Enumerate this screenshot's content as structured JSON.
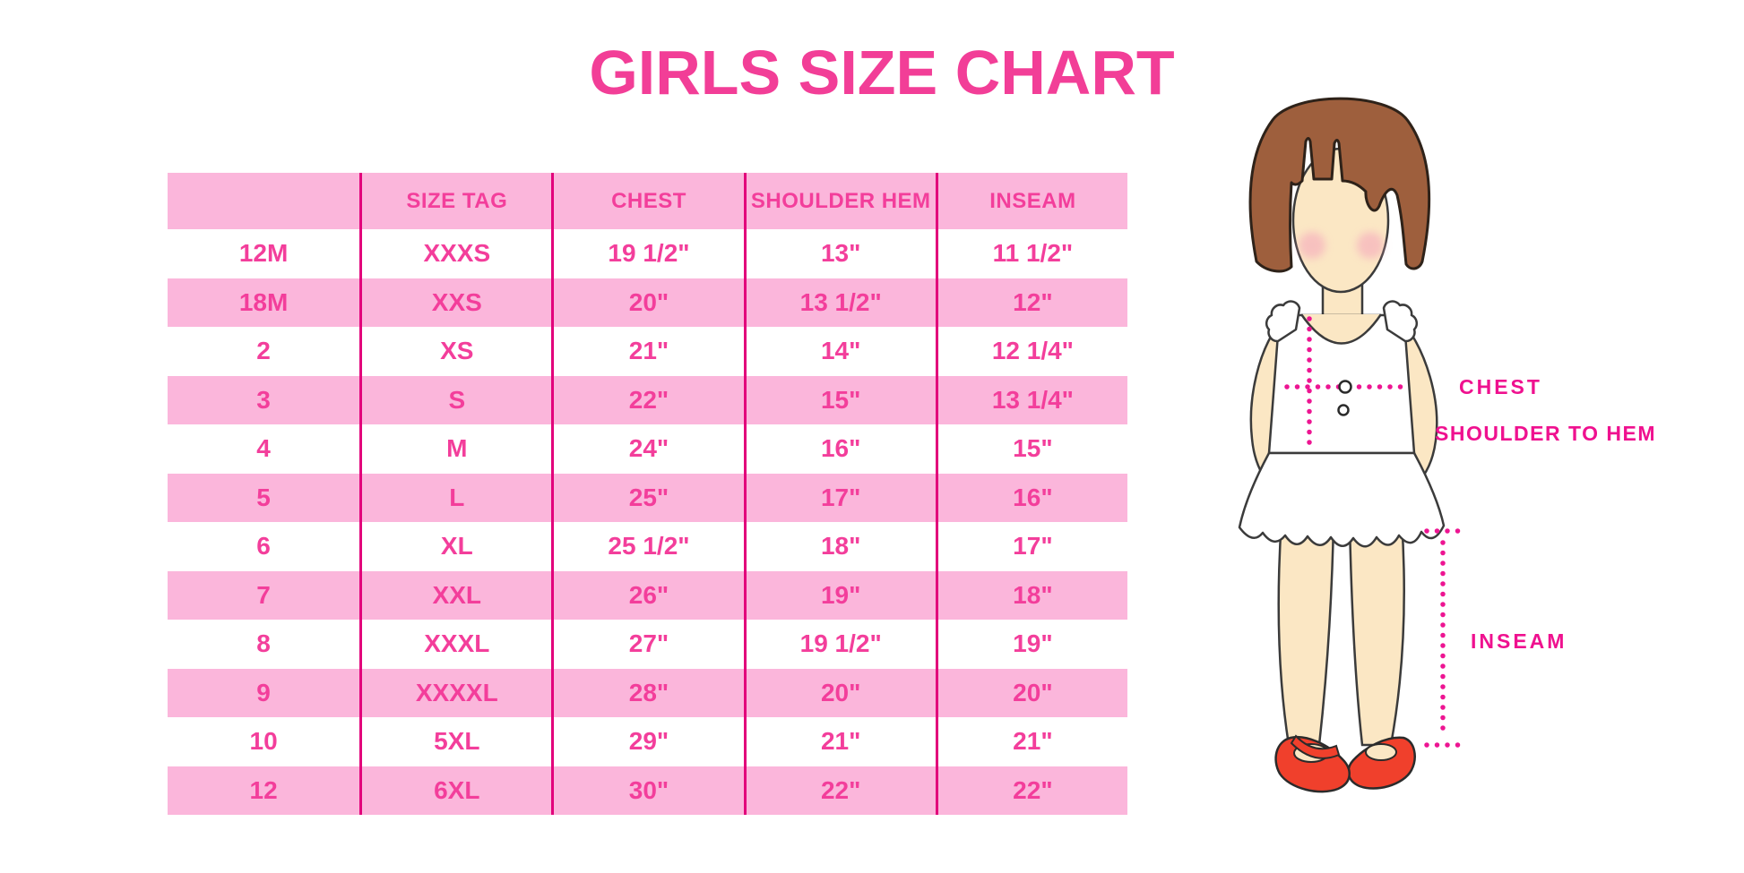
{
  "title": "GIRLS SIZE CHART",
  "table": {
    "headers": [
      "",
      "SIZE TAG",
      "CHEST",
      "SHOULDER HEM",
      "INSEAM"
    ],
    "rows": [
      [
        "12M",
        "XXXS",
        "19 1/2\"",
        "13\"",
        "11 1/2\""
      ],
      [
        "18M",
        "XXS",
        "20\"",
        "13 1/2\"",
        "12\""
      ],
      [
        "2",
        "XS",
        "21\"",
        "14\"",
        "12 1/4\""
      ],
      [
        "3",
        "S",
        "22\"",
        "15\"",
        "13 1/4\""
      ],
      [
        "4",
        "M",
        "24\"",
        "16\"",
        "15\""
      ],
      [
        "5",
        "L",
        "25\"",
        "17\"",
        "16\""
      ],
      [
        "6",
        "XL",
        "25 1/2\"",
        "18\"",
        "17\""
      ],
      [
        "7",
        "XXL",
        "26\"",
        "19\"",
        "18\""
      ],
      [
        "8",
        "XXXL",
        "27\"",
        "19 1/2\"",
        "19\""
      ],
      [
        "9",
        "XXXXL",
        "28\"",
        "20\"",
        "20\""
      ],
      [
        "10",
        "5XL",
        "29\"",
        "21\"",
        "21\""
      ],
      [
        "12",
        "6XL",
        "30\"",
        "22\"",
        "22\""
      ]
    ]
  },
  "diagram": {
    "labels": {
      "chest": "CHEST",
      "shoulder_to_hem": "SHOULDER TO HEM",
      "inseam": "INSEAM"
    }
  },
  "colors": {
    "row_pink": "#FBB6DB",
    "text_pink": "#F33E9B",
    "line_magenta": "#E2017B",
    "label_magenta": "#EF118F",
    "title_pink": "#F23E97",
    "hair_brown": "#9E5F3D",
    "skin": "#FBE7C4",
    "shoe_red": "#F0402C",
    "dress_white": "#FFFFFF"
  }
}
